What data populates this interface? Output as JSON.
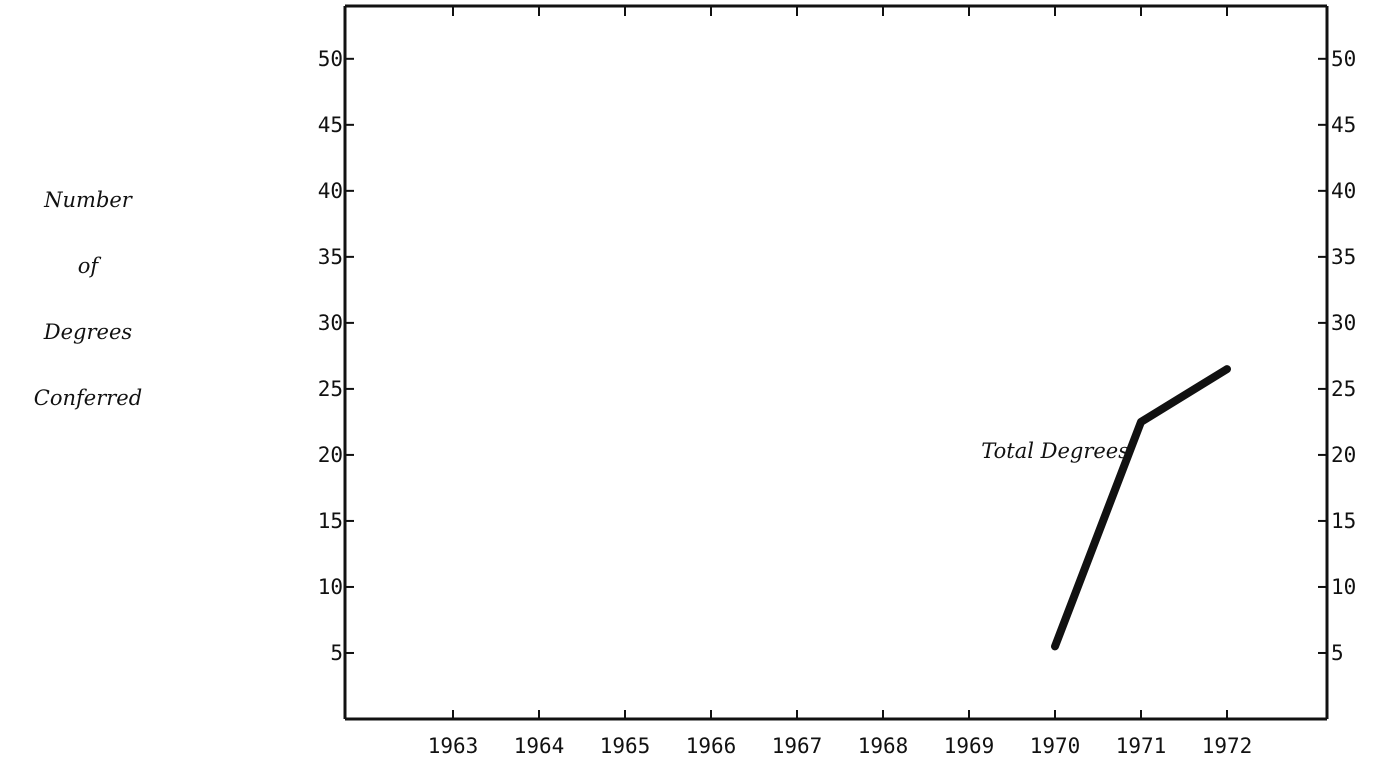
{
  "chart_data": {
    "type": "line",
    "title": "",
    "ylabel_lines": [
      "Number",
      "of",
      "Degrees",
      "Conferred"
    ],
    "xlabel": "",
    "categories": [
      "1963",
      "1964",
      "1965",
      "1966",
      "1967",
      "1968",
      "1969",
      "1970",
      "1971",
      "1972"
    ],
    "y_ticks": [
      5,
      10,
      15,
      20,
      25,
      30,
      35,
      40,
      45,
      50
    ],
    "ylim": [
      0,
      54
    ],
    "grid": false,
    "right_axis_mirrored": true,
    "series": [
      {
        "name": "Total Degrees",
        "points": [
          {
            "x": 1970,
            "y": 5.5
          },
          {
            "x": 1971,
            "y": 22.5
          },
          {
            "x": 1972,
            "y": 26.5
          }
        ]
      }
    ]
  }
}
